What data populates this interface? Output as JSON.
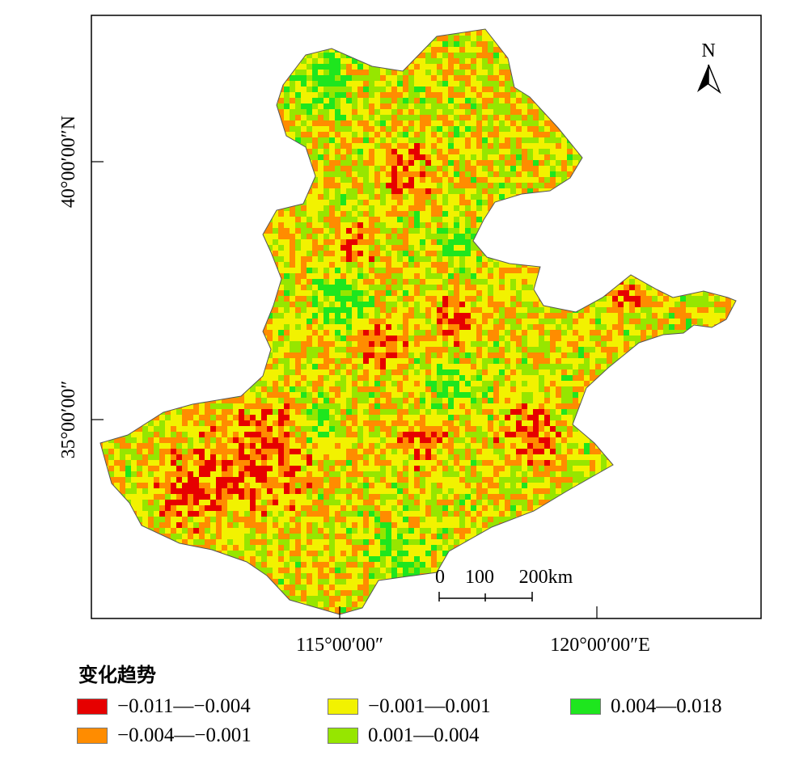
{
  "map": {
    "lat_axis": [
      {
        "label": "40°00′00″N",
        "lat": 40
      },
      {
        "label": "35°00′00″",
        "lat": 35
      }
    ],
    "lon_axis": [
      {
        "label": "115°00′00″",
        "lon": 115
      },
      {
        "label": "120°00′00″E",
        "lon": 120
      }
    ],
    "north_arrow": "N",
    "scale_bar": {
      "ticks": [
        "0",
        "100",
        "200km"
      ]
    }
  },
  "legend": {
    "title": "变化趋势",
    "classes": [
      {
        "label": "−0.011—−0.004",
        "color": "#e60000"
      },
      {
        "label": "−0.004—−0.001",
        "color": "#ff8c00"
      },
      {
        "label": "−0.001—0.001",
        "color": "#f2f200"
      },
      {
        "label": "0.001—0.004",
        "color": "#96e600"
      },
      {
        "label": "0.004—0.018",
        "color": "#1ee61e"
      }
    ]
  }
}
